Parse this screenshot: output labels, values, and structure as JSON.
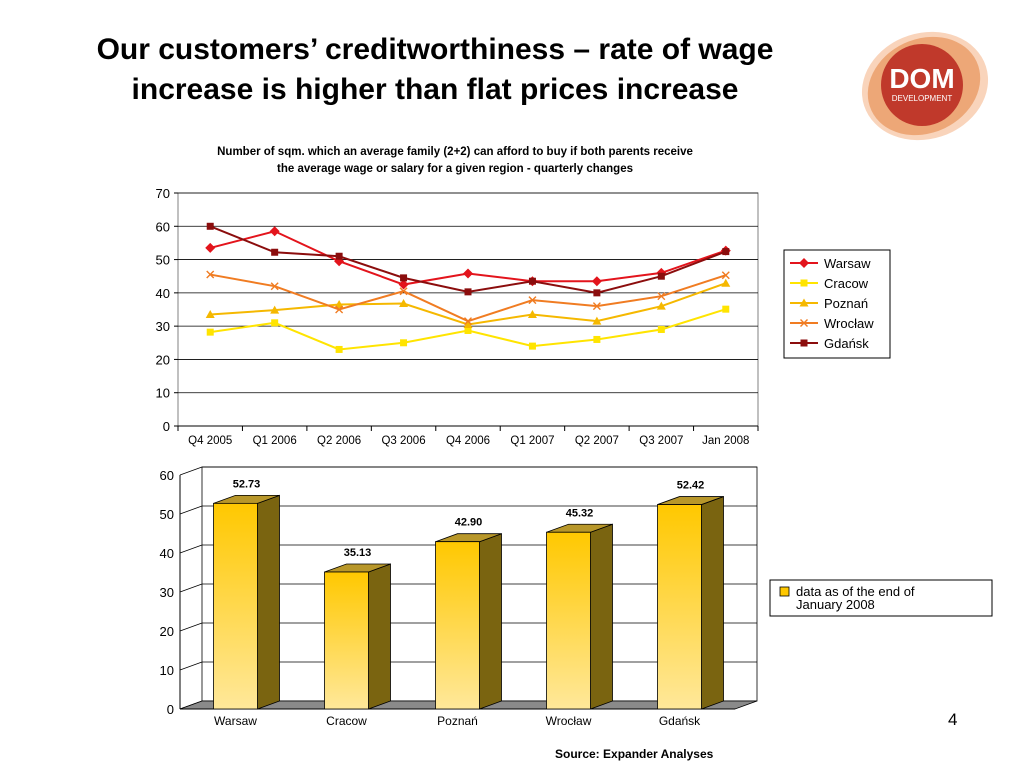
{
  "slide": {
    "title_line1": "Our customers’ creditworthiness –  rate of wage",
    "title_line2": "increase is higher than flat prices increase",
    "logo_text_main": "DOM",
    "logo_text_sub": "DEVELOPMENT",
    "logo_color": "#c0392b",
    "page_number": "4",
    "source": "Source: Expander Analyses"
  },
  "chart_data": [
    {
      "type": "line",
      "title_line1": "Number of sqm. which an average family (2+2) can afford to buy if  both parents receive",
      "title_line2": "the average wage or salary for a given region - quarterly changes",
      "categories": [
        "Q4 2005",
        "Q1 2006",
        "Q2 2006",
        "Q3 2006",
        "Q4 2006",
        "Q1 2007",
        "Q2 2007",
        "Q3 2007",
        "Jan 2008"
      ],
      "ylim": [
        0,
        70
      ],
      "yticks": [
        0,
        10,
        20,
        30,
        40,
        50,
        60,
        70
      ],
      "grid": true,
      "legend_position": "right",
      "series": [
        {
          "name": "Warsaw",
          "color": "#e3141c",
          "marker": "diamond",
          "values": [
            53.5,
            58.5,
            49.5,
            42.5,
            45.8,
            43.5,
            43.5,
            46,
            52.7
          ]
        },
        {
          "name": "Cracow",
          "color": "#ffe400",
          "marker": "square",
          "values": [
            28.2,
            31,
            23,
            25,
            28.7,
            24,
            26,
            29,
            35.1
          ]
        },
        {
          "name": "Poznań",
          "color": "#f5b800",
          "marker": "triangle",
          "values": [
            33.5,
            34.8,
            36.5,
            36.8,
            30.5,
            33.5,
            31.5,
            36,
            42.9
          ]
        },
        {
          "name": "Wrocław",
          "color": "#f07c22",
          "marker": "x",
          "values": [
            45.5,
            42,
            35,
            40.5,
            31.5,
            37.8,
            36,
            39,
            45.3
          ]
        },
        {
          "name": "Gdańsk",
          "color": "#8b0d0d",
          "marker": "square",
          "values": [
            60,
            52.2,
            51,
            44.5,
            40.3,
            43.5,
            40,
            45,
            52.4
          ]
        }
      ]
    },
    {
      "type": "bar",
      "categories": [
        "Warsaw",
        "Cracow",
        "Poznań",
        "Wrocław",
        "Gdańsk"
      ],
      "values": [
        52.73,
        35.13,
        42.9,
        45.32,
        52.42
      ],
      "value_labels": [
        "52.73",
        "35.13",
        "42.90",
        "45.32",
        "52.42"
      ],
      "ylim": [
        0,
        60
      ],
      "yticks": [
        0,
        10,
        20,
        30,
        40,
        50,
        60
      ],
      "grid": true,
      "legend_position": "right",
      "legend_line1": "data as of the end of",
      "legend_line2": "January 2008",
      "bar_color": "#ffc800"
    }
  ]
}
